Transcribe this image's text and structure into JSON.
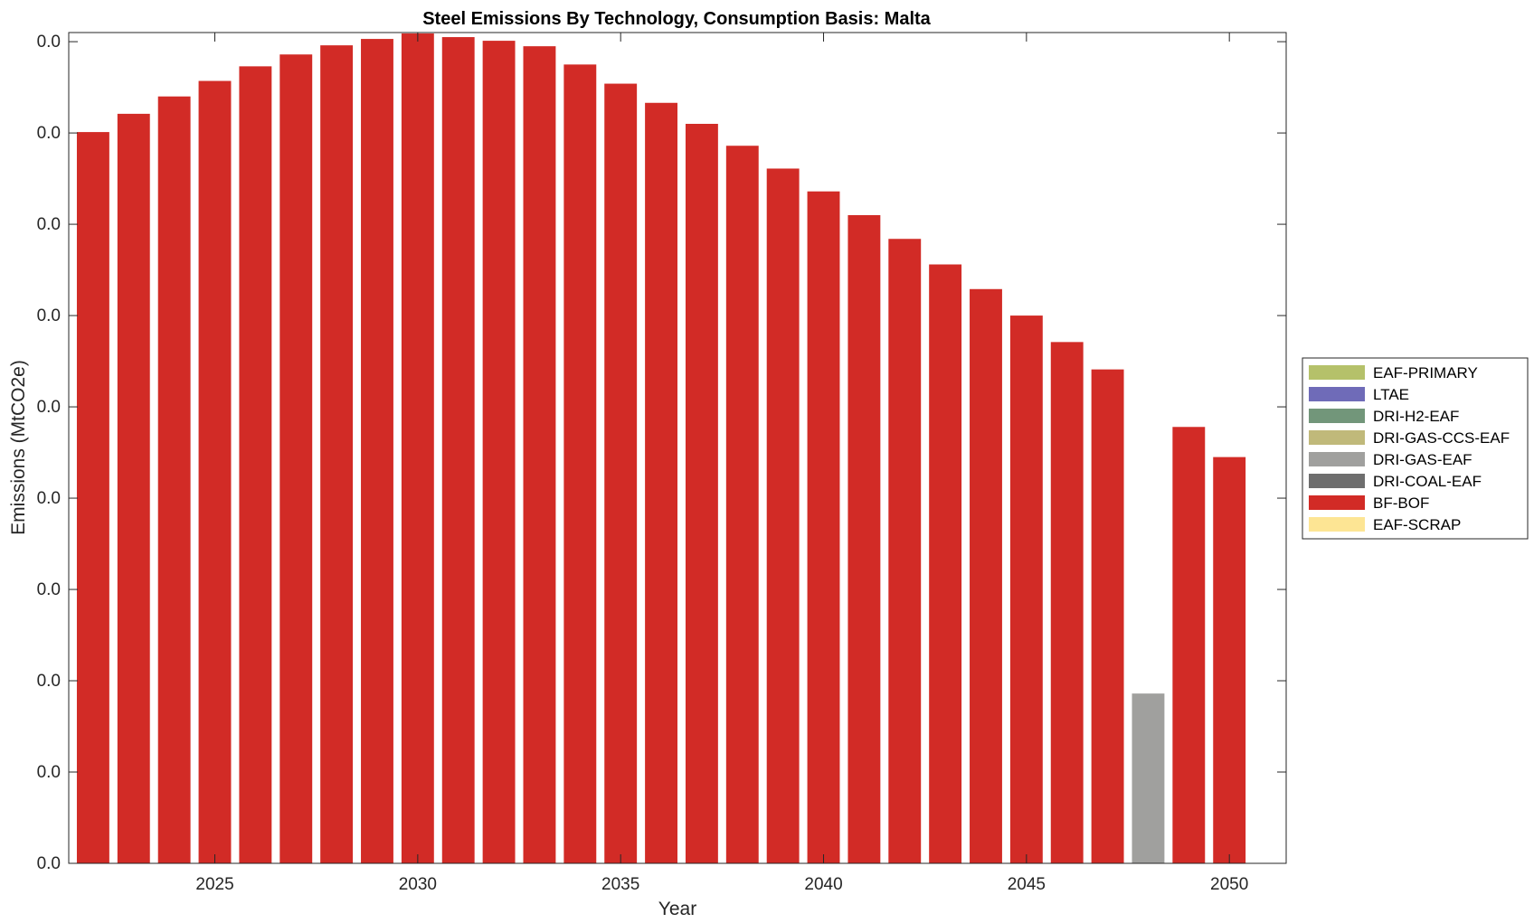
{
  "chart_data": {
    "type": "bar",
    "stacked": true,
    "title": "Steel Emissions By Technology, Consumption Basis: Malta",
    "xlabel": "Year",
    "ylabel": "Emissions (MtCO2e)",
    "x": [
      2022,
      2023,
      2024,
      2025,
      2026,
      2027,
      2028,
      2029,
      2030,
      2031,
      2032,
      2033,
      2034,
      2035,
      2036,
      2037,
      2038,
      2039,
      2040,
      2041,
      2042,
      2043,
      2044,
      2045,
      2046,
      2047,
      2048,
      2049,
      2050
    ],
    "xticks": [
      2025,
      2030,
      2035,
      2040,
      2045,
      2050
    ],
    "xlim": [
      2021.4,
      2051.4
    ],
    "ylim": [
      0,
      0.0091
    ],
    "ytick_values": [
      0,
      0.001,
      0.002,
      0.003,
      0.004,
      0.005,
      0.006,
      0.007,
      0.008,
      0.009
    ],
    "ytick_labels": [
      "0.0",
      "0.0",
      "0.0",
      "0.0",
      "0.0",
      "0.0",
      "0.0",
      "0.0",
      "0.0",
      "0.0"
    ],
    "grid": false,
    "legend_position": "outside-right",
    "series": [
      {
        "name": "EAF-PRIMARY",
        "color": "#b5c16a",
        "values": [
          0,
          0,
          0,
          0,
          0,
          0,
          0,
          0,
          0,
          0,
          0,
          0,
          0,
          0,
          0,
          0,
          0,
          0,
          0,
          0,
          0,
          0,
          0,
          0,
          0,
          0,
          0,
          0,
          0
        ]
      },
      {
        "name": "LTAE",
        "color": "#6f6bb8",
        "values": [
          0,
          0,
          0,
          0,
          0,
          0,
          0,
          0,
          0,
          0,
          0,
          0,
          0,
          0,
          0,
          0,
          0,
          0,
          0,
          0,
          0,
          0,
          0,
          0,
          0,
          0,
          0,
          0,
          0
        ]
      },
      {
        "name": "DRI-H2-EAF",
        "color": "#72967a",
        "values": [
          0,
          0,
          0,
          0,
          0,
          0,
          0,
          0,
          0,
          0,
          0,
          0,
          0,
          0,
          0,
          0,
          0,
          0,
          0,
          0,
          0,
          0,
          0,
          0,
          0,
          0,
          0,
          0,
          0
        ]
      },
      {
        "name": "DRI-GAS-CCS-EAF",
        "color": "#c0b97a",
        "values": [
          0,
          0,
          0,
          0,
          0,
          0,
          0,
          0,
          0,
          0,
          0,
          0,
          0,
          0,
          0,
          0,
          0,
          0,
          0,
          0,
          0,
          0,
          0,
          0,
          0,
          0,
          0,
          0,
          0
        ]
      },
      {
        "name": "DRI-GAS-EAF",
        "color": "#a0a09e",
        "values": [
          0,
          0,
          0,
          0,
          0,
          0,
          0,
          0,
          0,
          0,
          0,
          0,
          0,
          0,
          0,
          0,
          0,
          0,
          0,
          0,
          0,
          0,
          0,
          0,
          0,
          0,
          0.00186,
          0,
          0
        ]
      },
      {
        "name": "DRI-COAL-EAF",
        "color": "#6e6e6e",
        "values": [
          0,
          0,
          0,
          0,
          0,
          0,
          0,
          0,
          0,
          0,
          0,
          0,
          0,
          0,
          0,
          0,
          0,
          0,
          0,
          0,
          0,
          0,
          0,
          0,
          0,
          0,
          0,
          0,
          0
        ]
      },
      {
        "name": "BF-BOF",
        "color": "#d22b26",
        "values": [
          0.00801,
          0.00821,
          0.0084,
          0.00857,
          0.00873,
          0.00886,
          0.00896,
          0.00903,
          0.00909,
          0.00905,
          0.00901,
          0.00895,
          0.00875,
          0.00854,
          0.00833,
          0.0081,
          0.00786,
          0.00761,
          0.00736,
          0.0071,
          0.00684,
          0.00656,
          0.00629,
          0.006,
          0.00571,
          0.00541,
          0,
          0.00478,
          0.00445
        ]
      },
      {
        "name": "EAF-SCRAP",
        "color": "#fde594",
        "values": [
          0,
          0,
          0,
          0,
          0,
          0,
          0,
          0,
          0,
          0,
          0,
          0,
          0,
          0,
          0,
          0,
          0,
          0,
          0,
          0,
          0,
          0,
          0,
          0,
          0,
          0,
          0,
          0,
          0
        ]
      }
    ]
  }
}
